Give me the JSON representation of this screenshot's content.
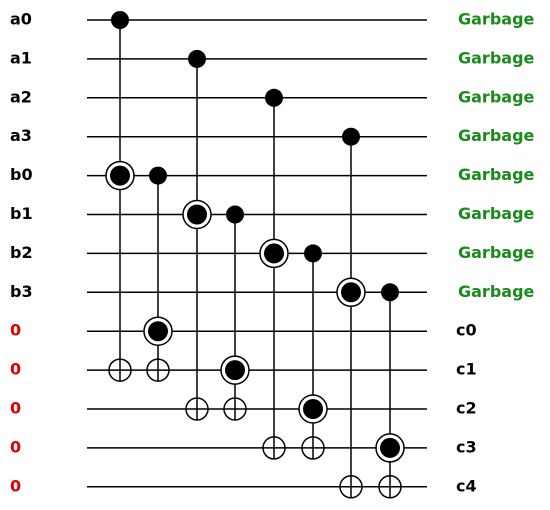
{
  "inputs": [
    "a0",
    "a1",
    "a2",
    "a3",
    "b0",
    "b1",
    "b2",
    "b3",
    "0",
    "0",
    "0",
    "0",
    "0"
  ],
  "outputs": [
    "Garbage",
    "Garbage",
    "Garbage",
    "Garbage",
    "Garbage",
    "Garbage",
    "Garbage",
    "Garbage",
    "c0",
    "c1",
    "c2",
    "c3",
    "c4"
  ]
}
